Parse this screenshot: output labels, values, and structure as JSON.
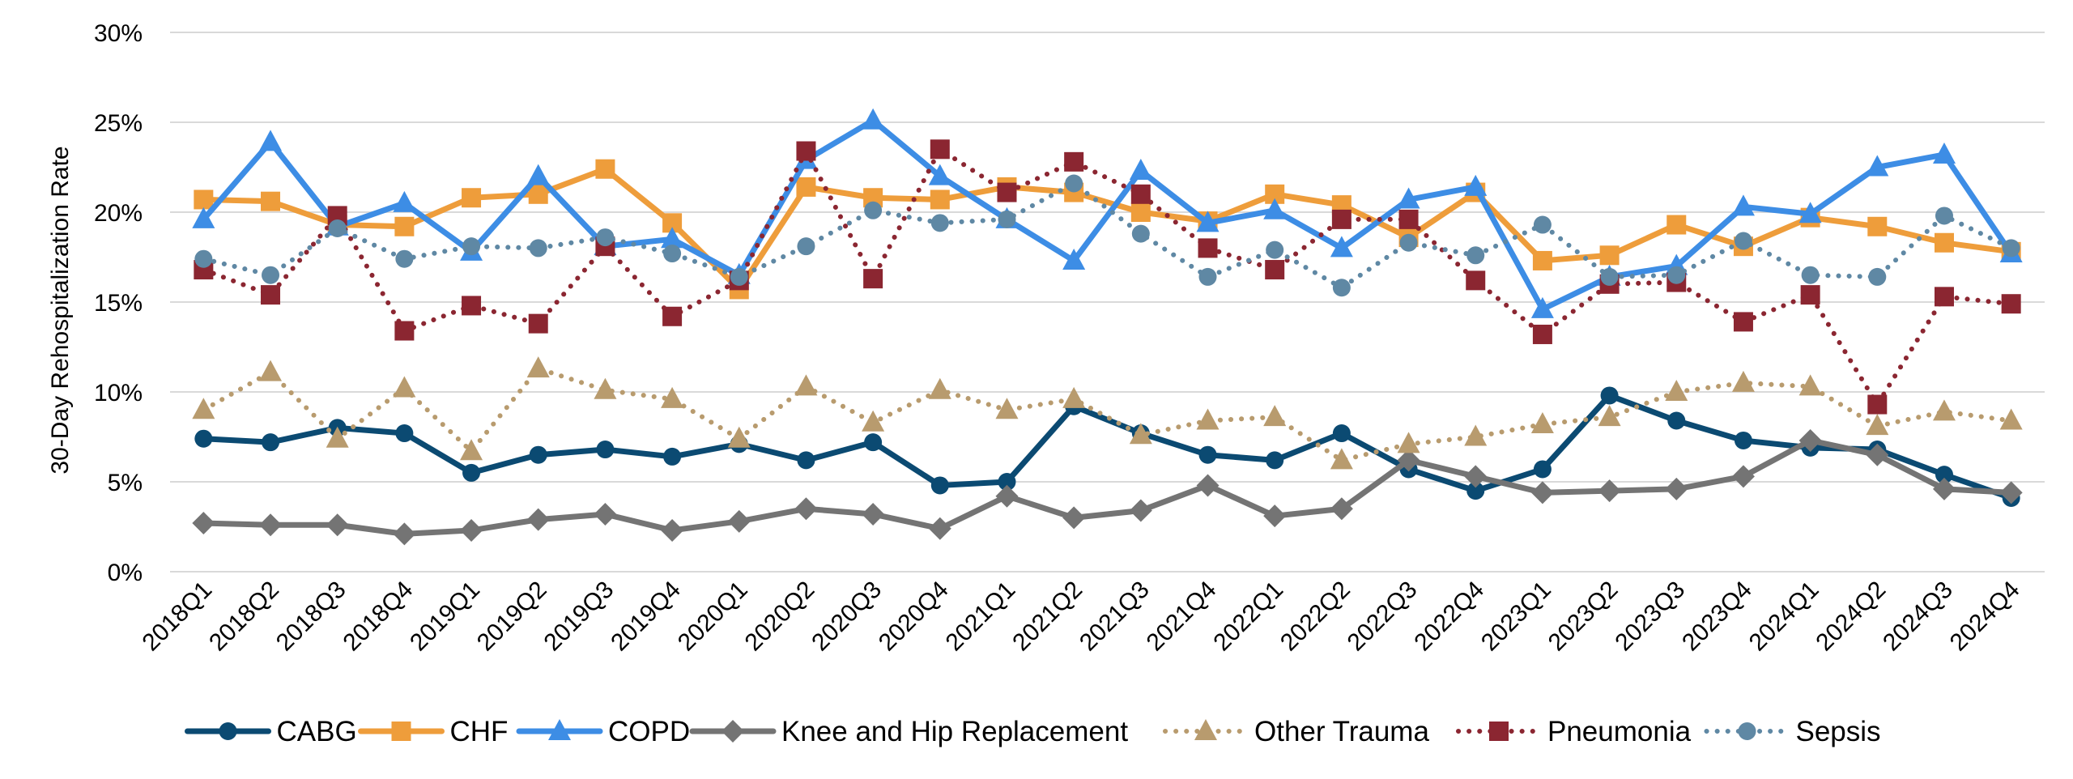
{
  "chart_data": {
    "type": "line",
    "title": "",
    "xlabel": "",
    "ylabel": "30-Day Rehospitalization Rate",
    "ylim": [
      0,
      30
    ],
    "y_ticks": [
      "0%",
      "5%",
      "10%",
      "15%",
      "20%",
      "25%",
      "30%"
    ],
    "y_tick_values": [
      0,
      5,
      10,
      15,
      20,
      25,
      30
    ],
    "grid": "horizontal",
    "legend_position": "bottom",
    "categories": [
      "2018Q1",
      "2018Q2",
      "2018Q3",
      "2018Q4",
      "2019Q1",
      "2019Q2",
      "2019Q3",
      "2019Q4",
      "2020Q1",
      "2020Q2",
      "2020Q3",
      "2020Q4",
      "2021Q1",
      "2021Q2",
      "2021Q3",
      "2021Q4",
      "2022Q1",
      "2022Q2",
      "2022Q3",
      "2022Q4",
      "2023Q1",
      "2023Q2",
      "2023Q3",
      "2023Q4",
      "2024Q1",
      "2024Q2",
      "2024Q3",
      "2024Q4"
    ],
    "series": [
      {
        "name": "CABG",
        "color": "#0B4A72",
        "dash": "solid",
        "marker": "circle",
        "values": [
          7.4,
          7.2,
          8.0,
          7.7,
          5.5,
          6.5,
          6.8,
          6.4,
          7.1,
          6.2,
          7.2,
          4.8,
          5.0,
          9.2,
          7.7,
          6.5,
          6.2,
          7.7,
          5.7,
          4.5,
          5.7,
          9.8,
          8.4,
          7.3,
          6.9,
          6.8,
          5.4,
          4.1
        ]
      },
      {
        "name": "CHF",
        "color": "#EE9D3B",
        "dash": "solid",
        "marker": "square",
        "values": [
          20.7,
          20.6,
          19.3,
          19.2,
          20.8,
          21.0,
          22.4,
          19.4,
          15.7,
          21.4,
          20.8,
          20.7,
          21.4,
          21.1,
          20.0,
          19.5,
          21.0,
          20.4,
          18.6,
          21.1,
          17.3,
          17.6,
          19.3,
          18.1,
          19.7,
          19.2,
          18.3,
          17.8
        ]
      },
      {
        "name": "COPD",
        "color": "#3D8DE5",
        "dash": "solid",
        "marker": "triangle",
        "values": [
          19.6,
          23.9,
          19.2,
          20.5,
          17.8,
          22.0,
          18.1,
          18.5,
          16.5,
          22.9,
          25.1,
          22.0,
          19.6,
          17.3,
          22.3,
          19.4,
          20.1,
          18.0,
          20.7,
          21.4,
          14.6,
          16.4,
          17.0,
          20.3,
          19.9,
          22.5,
          23.2,
          17.7
        ]
      },
      {
        "name": "Knee and Hip Replacement",
        "color": "#747474",
        "dash": "solid",
        "marker": "diamond",
        "values": [
          2.7,
          2.6,
          2.6,
          2.1,
          2.3,
          2.9,
          3.2,
          2.3,
          2.8,
          3.5,
          3.2,
          2.4,
          4.2,
          3.0,
          3.4,
          4.8,
          3.1,
          3.5,
          6.2,
          5.3,
          4.4,
          4.5,
          4.6,
          5.3,
          7.3,
          6.5,
          4.6,
          4.4
        ]
      },
      {
        "name": "Other Trauma",
        "color": "#B89B6E",
        "dash": "dotted",
        "marker": "triangle",
        "values": [
          9.0,
          11.1,
          7.4,
          10.2,
          6.7,
          11.3,
          10.1,
          9.6,
          7.4,
          10.3,
          8.3,
          10.1,
          9.0,
          9.6,
          7.6,
          8.4,
          8.6,
          6.2,
          7.1,
          7.5,
          8.2,
          8.6,
          10.0,
          10.5,
          10.3,
          8.1,
          8.9,
          8.4
        ]
      },
      {
        "name": "Pneumonia",
        "color": "#8B2631",
        "dash": "dotted",
        "marker": "square",
        "values": [
          16.8,
          15.4,
          19.8,
          13.4,
          14.8,
          13.8,
          18.1,
          14.2,
          16.2,
          23.4,
          16.3,
          23.5,
          21.1,
          22.8,
          21.0,
          18.0,
          16.8,
          19.6,
          19.6,
          16.2,
          13.2,
          16.0,
          16.1,
          13.9,
          15.4,
          9.3,
          15.3,
          14.9
        ]
      },
      {
        "name": "Sepsis",
        "color": "#5F88A4",
        "dash": "dotted",
        "marker": "circle",
        "values": [
          17.4,
          16.5,
          19.1,
          17.4,
          18.1,
          18.0,
          18.6,
          17.7,
          16.4,
          18.1,
          20.1,
          19.4,
          19.6,
          21.6,
          18.8,
          16.4,
          17.9,
          15.8,
          18.3,
          17.6,
          19.3,
          16.4,
          16.5,
          18.4,
          16.5,
          16.4,
          19.8,
          18.0
        ]
      }
    ]
  }
}
